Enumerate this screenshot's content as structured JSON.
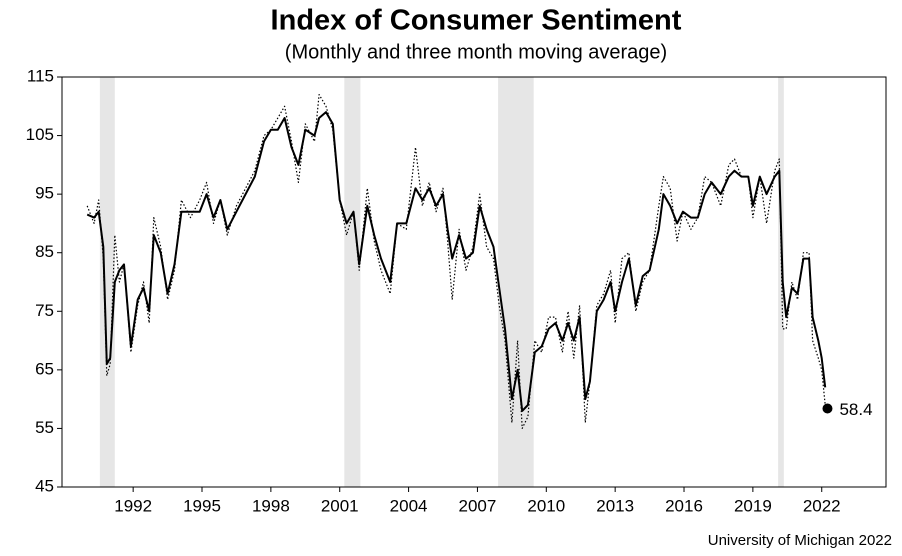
{
  "chart_data": {
    "type": "line",
    "title": "Index of Consumer Sentiment",
    "subtitle": "(Monthly and three month moving average)",
    "source": "University of Michigan 2022",
    "xlim": [
      1988.9,
      2024.8
    ],
    "xticks": [
      1992,
      1995,
      1998,
      2001,
      2004,
      2007,
      2010,
      2013,
      2016,
      2019,
      2022
    ],
    "ylim": [
      45,
      115
    ],
    "yticks": [
      45,
      55,
      65,
      75,
      85,
      95,
      105,
      115
    ],
    "shaded_color": "#e6e6e6",
    "shaded_regions": [
      [
        1990.55,
        1991.2
      ],
      [
        2001.2,
        2001.9
      ],
      [
        2007.9,
        2009.45
      ],
      [
        2020.1,
        2020.35
      ]
    ],
    "x": [
      1990.0,
      1990.3,
      1990.5,
      1990.7,
      1990.85,
      1991.0,
      1991.2,
      1991.4,
      1991.6,
      1991.9,
      1992.2,
      1992.45,
      1992.7,
      1992.9,
      1993.2,
      1993.5,
      1993.8,
      1994.1,
      1994.5,
      1994.9,
      1995.2,
      1995.5,
      1995.8,
      1996.1,
      1996.5,
      1996.9,
      1997.3,
      1997.7,
      1998.0,
      1998.3,
      1998.6,
      1998.9,
      1999.2,
      1999.5,
      1999.9,
      2000.1,
      2000.4,
      2000.7,
      2001.0,
      2001.3,
      2001.6,
      2001.85,
      2002.2,
      2002.5,
      2002.8,
      2003.2,
      2003.5,
      2003.9,
      2004.3,
      2004.6,
      2004.9,
      2005.2,
      2005.5,
      2005.7,
      2005.9,
      2006.2,
      2006.5,
      2006.8,
      2007.1,
      2007.4,
      2007.7,
      2007.95,
      2008.2,
      2008.5,
      2008.75,
      2008.95,
      2009.2,
      2009.5,
      2009.8,
      2010.1,
      2010.4,
      2010.7,
      2010.95,
      2011.2,
      2011.45,
      2011.7,
      2011.9,
      2012.2,
      2012.5,
      2012.8,
      2013.0,
      2013.3,
      2013.6,
      2013.9,
      2014.2,
      2014.5,
      2014.9,
      2015.1,
      2015.4,
      2015.7,
      2015.95,
      2016.3,
      2016.6,
      2016.9,
      2017.2,
      2017.6,
      2017.95,
      2018.2,
      2018.5,
      2018.8,
      2019.0,
      2019.3,
      2019.6,
      2019.95,
      2020.15,
      2020.3,
      2020.45,
      2020.7,
      2020.95,
      2021.2,
      2021.45,
      2021.6,
      2021.85,
      2022.0,
      2022.15
    ],
    "series": [
      {
        "color": "#000000",
        "style": "dotted",
        "values": [
          93,
          90,
          94,
          84,
          64,
          66,
          88,
          80,
          83,
          68,
          76,
          80,
          73,
          91,
          86,
          77,
          82,
          94,
          91,
          94,
          97,
          90,
          94,
          88,
          93,
          96,
          99,
          105,
          106,
          108,
          110,
          104,
          97,
          107,
          104,
          112,
          110,
          106,
          94,
          88,
          92,
          82,
          96,
          87,
          82,
          78,
          90,
          89,
          103,
          93,
          97,
          92,
          96,
          87,
          77,
          89,
          82,
          86,
          95,
          86,
          84,
          76,
          70,
          56,
          70,
          55,
          57,
          70,
          68,
          74,
          74,
          68,
          75,
          67,
          76,
          56,
          63,
          76,
          78,
          82,
          73,
          84,
          85,
          75,
          80,
          82,
          93,
          98,
          96,
          87,
          92,
          89,
          91,
          98,
          97,
          93,
          100,
          101,
          98,
          98,
          91,
          98,
          90,
          99,
          101,
          72,
          72,
          80,
          77,
          85,
          85,
          70,
          67,
          65,
          59
        ]
      },
      {
        "color": "#000000",
        "style": "solid",
        "values": [
          91.5,
          91,
          92,
          86,
          66,
          67,
          80,
          82,
          83,
          69,
          77,
          79,
          75,
          88,
          85,
          78,
          83,
          92,
          92,
          92,
          95,
          91,
          94,
          89,
          92,
          95,
          98,
          104,
          106,
          106,
          108,
          103,
          100,
          106,
          105,
          108,
          109,
          107,
          94,
          90,
          92,
          83,
          93,
          88,
          84,
          80,
          90,
          90,
          96,
          94,
          96,
          93,
          95,
          89,
          84,
          88,
          84,
          85,
          93,
          89,
          86,
          79,
          72,
          60,
          65,
          58,
          59,
          68,
          69,
          72,
          73,
          70,
          73,
          70,
          74,
          60,
          63,
          75,
          77,
          80,
          75,
          80,
          84,
          76,
          81,
          82,
          89,
          95,
          93,
          90,
          92,
          91,
          91,
          95,
          97,
          95,
          98,
          99,
          98,
          98,
          93,
          98,
          95,
          98,
          99,
          80,
          74,
          79,
          78,
          84,
          84,
          74,
          70,
          67,
          62
        ]
      }
    ],
    "latest": {
      "x": 2022.25,
      "value": 58.4,
      "color": "#000000"
    }
  }
}
